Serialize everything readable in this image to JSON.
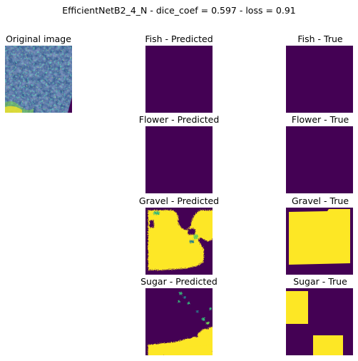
{
  "figure": {
    "suptitle": "EfficientNetB2_4_N - dice_coef = 0.597 - loss = 0.91"
  },
  "panels": {
    "original": {
      "title": "Original image"
    },
    "fish_pred": {
      "title": "Fish - Predicted"
    },
    "fish_true": {
      "title": "Fish - True"
    },
    "flower_pred": {
      "title": "Flower - Predicted"
    },
    "flower_true": {
      "title": "Flower - True"
    },
    "gravel_pred": {
      "title": "Gravel - Predicted"
    },
    "gravel_true": {
      "title": "Gravel - True"
    },
    "sugar_pred": {
      "title": "Sugar - Predicted"
    },
    "sugar_true": {
      "title": "Sugar - True"
    }
  },
  "colors": {
    "mask_background": "#440154",
    "mask_foreground": "#fde725"
  },
  "chart_data": {
    "type": "heatmap",
    "colormap": "viridis",
    "grid": false,
    "axes": "off"
  }
}
